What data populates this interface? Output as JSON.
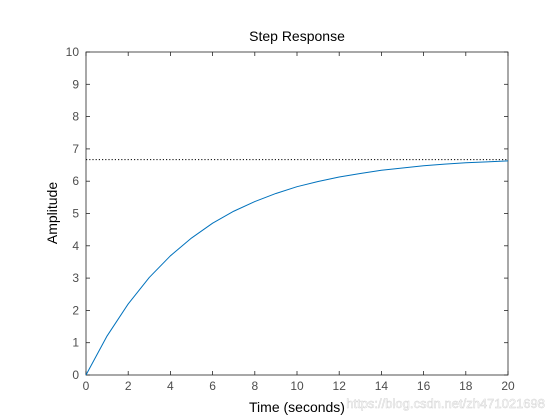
{
  "chart_data": {
    "type": "line",
    "title": "Step Response",
    "xlabel": "Time (seconds)",
    "ylabel": "Amplitude",
    "xlim": [
      0,
      20
    ],
    "ylim": [
      0,
      10
    ],
    "xticks": [
      0,
      2,
      4,
      6,
      8,
      10,
      12,
      14,
      16,
      18,
      20
    ],
    "yticks": [
      0,
      1,
      2,
      3,
      4,
      5,
      6,
      7,
      8,
      9,
      10
    ],
    "grid": false,
    "series": [
      {
        "color": "#0072bd",
        "x": [
          0,
          1,
          2,
          3,
          4,
          5,
          6,
          7,
          8,
          9,
          10,
          11,
          12,
          13,
          14,
          15,
          16,
          17,
          18,
          19,
          20
        ],
        "values": [
          0,
          1.21,
          2.2,
          3.02,
          3.69,
          4.24,
          4.7,
          5.07,
          5.37,
          5.62,
          5.83,
          5.99,
          6.13,
          6.24,
          6.34,
          6.41,
          6.48,
          6.53,
          6.57,
          6.6,
          6.63
        ]
      }
    ],
    "reference_lines": [
      {
        "value": 6.667,
        "style": "dotted",
        "color": "#000000"
      }
    ]
  },
  "watermark": "https://blog.csdn.net/zh471021698"
}
